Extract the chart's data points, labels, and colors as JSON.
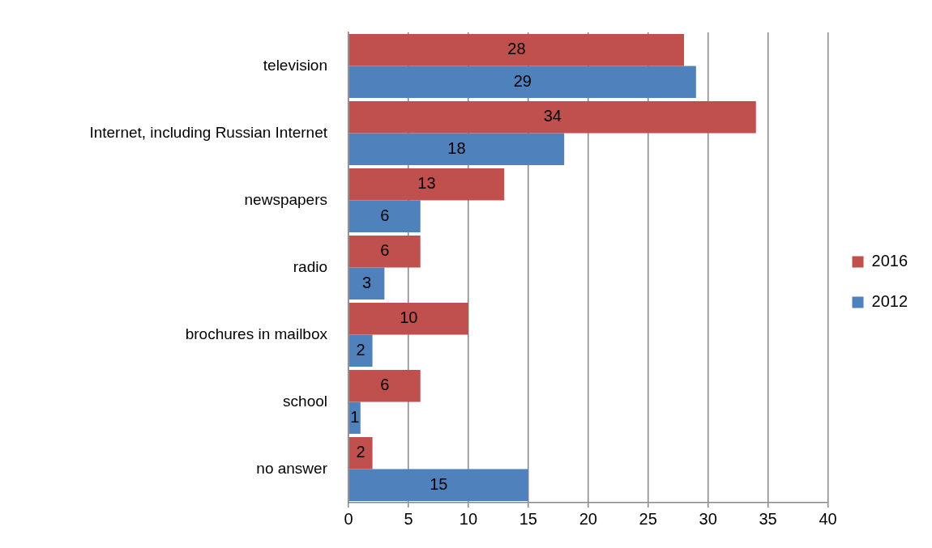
{
  "chart_data": {
    "type": "bar",
    "orientation": "horizontal",
    "categories": [
      "television",
      "Internet, including Russian Internet",
      "newspapers",
      "radio",
      "brochures in mailbox",
      "school",
      "no answer"
    ],
    "series": [
      {
        "name": "2016",
        "color": "#c0504d",
        "values": [
          28,
          34,
          13,
          6,
          10,
          6,
          2
        ]
      },
      {
        "name": "2012",
        "color": "#4f81bd",
        "values": [
          29,
          18,
          6,
          3,
          2,
          1,
          15
        ]
      }
    ],
    "xlim": [
      0,
      40
    ],
    "xticks": [
      0,
      5,
      10,
      15,
      20,
      25,
      30,
      35,
      40
    ],
    "grid": "x",
    "legend": "right",
    "data_labels": true
  }
}
